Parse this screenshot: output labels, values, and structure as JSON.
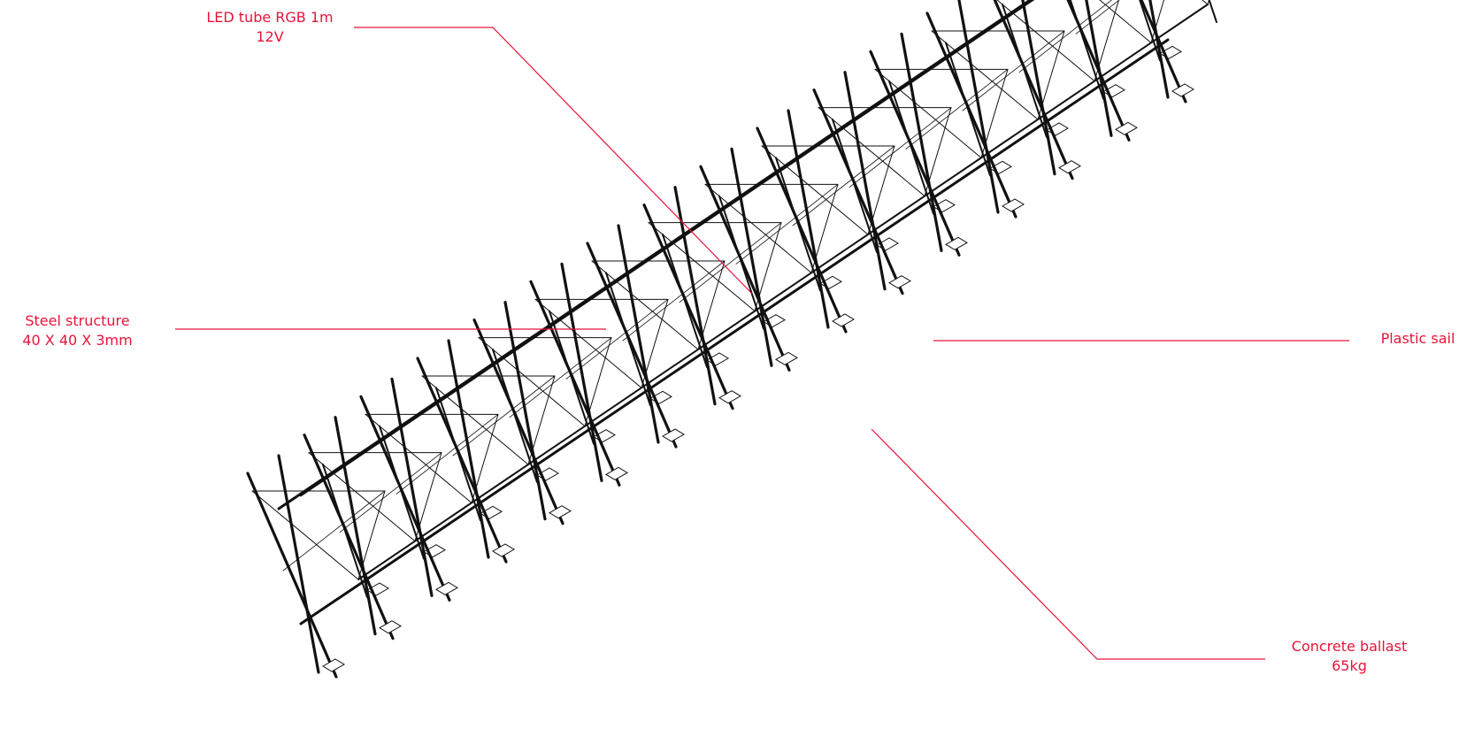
{
  "annotations": {
    "led": {
      "line1": "LED tube RGB 1m",
      "line2": "12V"
    },
    "steel": {
      "line1": "Steel structure",
      "line2": "40 X 40 X 3mm"
    },
    "sail": {
      "line1": "Plastic sail"
    },
    "ballast": {
      "line1": "Concrete ballast",
      "line2": "65kg"
    }
  },
  "colors": {
    "annotation": "#e8143a",
    "structure": "#111111"
  }
}
